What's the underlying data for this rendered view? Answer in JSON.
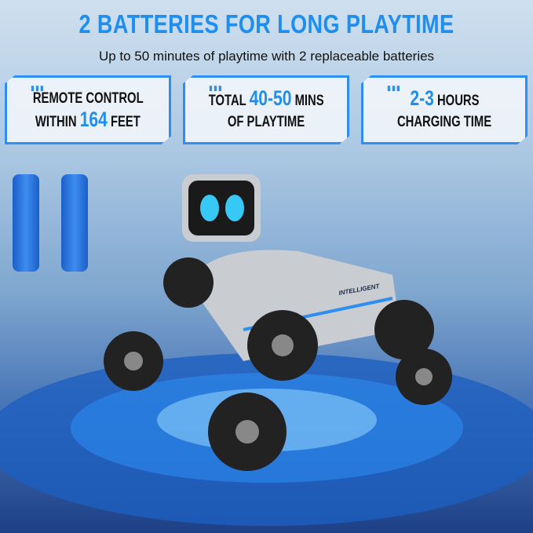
{
  "header": {
    "title": "2 BATTERIES FOR LONG PLAYTIME",
    "subtitle": "Up to 50 minutes of playtime with 2 replaceable batteries"
  },
  "cards": [
    {
      "line1": "REMOTE CONTROL",
      "line2_pre": "WITHIN ",
      "line2_hl": "164",
      "line2_post": " FEET"
    },
    {
      "line1_pre": "TOTAL ",
      "line1_hl": "40-50",
      "line1_post": " MINS",
      "line2": "OF PLAYTIME"
    },
    {
      "line1_hl": "2-3",
      "line1_post": " HOURS",
      "line2": "CHARGING TIME"
    }
  ],
  "product_logo_text": "INTELLIGENT",
  "colors": {
    "accent": "#1e8ef0",
    "text": "#111111",
    "battery": "#2a78e0",
    "robot_body": "#c9ccd1",
    "eyes": "#38c8f5"
  }
}
